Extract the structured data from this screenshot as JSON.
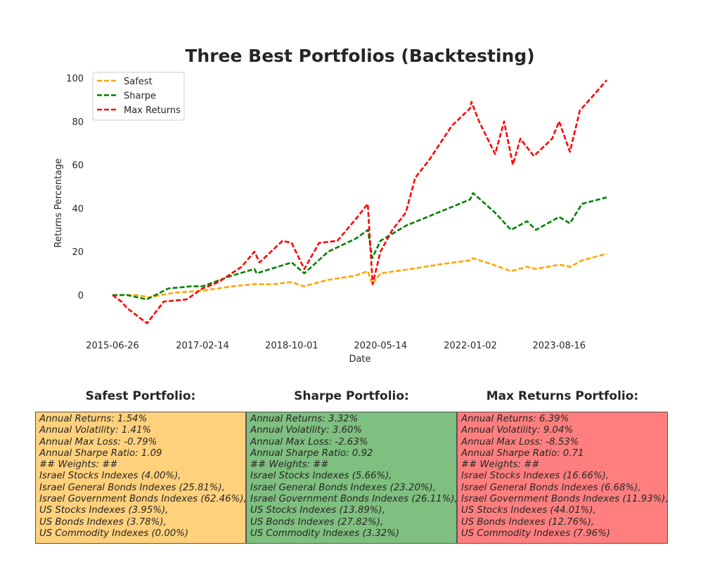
{
  "chart_data": {
    "type": "line",
    "title": "Three Best Portfolios (Backtesting)",
    "xlabel": "Date",
    "ylabel": "Returns Percentage",
    "x_ticks": [
      "2015-06-26",
      "2017-02-14",
      "2018-10-01",
      "2020-05-14",
      "2022-01-02",
      "2023-08-16"
    ],
    "x_range": [
      "2015-06-26",
      "2024-06-30"
    ],
    "y_ticks": [
      0,
      20,
      40,
      60,
      80,
      100
    ],
    "ylim": [
      -19,
      105
    ],
    "grid": false,
    "legend_position": "upper-left",
    "line_style": "dashed",
    "series": [
      {
        "name": "Safest",
        "color": "#FFA500",
        "points": [
          [
            "2015-06-26",
            0
          ],
          [
            "2015-12-01",
            0
          ],
          [
            "2016-03-01",
            -1
          ],
          [
            "2016-08-01",
            1
          ],
          [
            "2017-02-14",
            2
          ],
          [
            "2017-09-01",
            4
          ],
          [
            "2018-01-15",
            5
          ],
          [
            "2018-06-01",
            5
          ],
          [
            "2018-10-01",
            6
          ],
          [
            "2018-12-20",
            4
          ],
          [
            "2019-06-01",
            7
          ],
          [
            "2019-12-01",
            9
          ],
          [
            "2020-02-20",
            11
          ],
          [
            "2020-03-20",
            5
          ],
          [
            "2020-05-14",
            10
          ],
          [
            "2020-12-01",
            12
          ],
          [
            "2021-06-01",
            14
          ],
          [
            "2021-12-31",
            16
          ],
          [
            "2022-01-20",
            17
          ],
          [
            "2022-06-01",
            14
          ],
          [
            "2022-09-30",
            11
          ],
          [
            "2023-01-15",
            13
          ],
          [
            "2023-03-15",
            12
          ],
          [
            "2023-08-16",
            14
          ],
          [
            "2023-10-30",
            13
          ],
          [
            "2024-01-15",
            16
          ],
          [
            "2024-06-28",
            19
          ]
        ]
      },
      {
        "name": "Sharpe",
        "color": "#008000",
        "points": [
          [
            "2015-06-26",
            0
          ],
          [
            "2015-10-01",
            0
          ],
          [
            "2016-02-10",
            -2
          ],
          [
            "2016-07-01",
            3
          ],
          [
            "2016-12-01",
            4
          ],
          [
            "2017-02-14",
            4
          ],
          [
            "2017-09-01",
            9
          ],
          [
            "2018-01-26",
            12
          ],
          [
            "2018-02-10",
            10
          ],
          [
            "2018-10-01",
            15
          ],
          [
            "2018-12-24",
            10
          ],
          [
            "2019-06-01",
            20
          ],
          [
            "2019-12-01",
            26
          ],
          [
            "2020-02-20",
            30
          ],
          [
            "2020-03-20",
            17
          ],
          [
            "2020-05-14",
            25
          ],
          [
            "2020-11-01",
            32
          ],
          [
            "2021-06-01",
            38
          ],
          [
            "2021-12-31",
            44
          ],
          [
            "2022-01-20",
            47
          ],
          [
            "2022-06-15",
            38
          ],
          [
            "2022-09-30",
            30
          ],
          [
            "2023-01-15",
            34
          ],
          [
            "2023-03-15",
            30
          ],
          [
            "2023-08-16",
            36
          ],
          [
            "2023-10-27",
            33
          ],
          [
            "2024-01-15",
            42
          ],
          [
            "2024-06-28",
            45
          ]
        ]
      },
      {
        "name": "Max Returns",
        "color": "#FF0000",
        "points": [
          [
            "2015-06-26",
            0
          ],
          [
            "2015-08-24",
            -3
          ],
          [
            "2015-10-01",
            -6
          ],
          [
            "2016-02-11",
            -13
          ],
          [
            "2016-06-01",
            -3
          ],
          [
            "2016-11-01",
            -2
          ],
          [
            "2017-02-14",
            3
          ],
          [
            "2017-06-01",
            6
          ],
          [
            "2017-11-01",
            13
          ],
          [
            "2018-01-26",
            20
          ],
          [
            "2018-03-01",
            15
          ],
          [
            "2018-08-01",
            25
          ],
          [
            "2018-10-01",
            24
          ],
          [
            "2018-12-24",
            12
          ],
          [
            "2019-04-01",
            24
          ],
          [
            "2019-08-01",
            25
          ],
          [
            "2019-12-01",
            35
          ],
          [
            "2020-02-19",
            42
          ],
          [
            "2020-03-23",
            5
          ],
          [
            "2020-05-14",
            20
          ],
          [
            "2020-08-01",
            30
          ],
          [
            "2020-10-30",
            38
          ],
          [
            "2020-12-31",
            54
          ],
          [
            "2021-04-01",
            62
          ],
          [
            "2021-09-01",
            78
          ],
          [
            "2021-12-31",
            86
          ],
          [
            "2022-01-10",
            89
          ],
          [
            "2022-03-01",
            80
          ],
          [
            "2022-06-16",
            65
          ],
          [
            "2022-08-15",
            80
          ],
          [
            "2022-10-12",
            60
          ],
          [
            "2022-12-01",
            72
          ],
          [
            "2023-03-01",
            64
          ],
          [
            "2023-06-30",
            72
          ],
          [
            "2023-08-16",
            80
          ],
          [
            "2023-10-27",
            66
          ],
          [
            "2024-01-01",
            85
          ],
          [
            "2024-04-01",
            92
          ],
          [
            "2024-06-28",
            99
          ]
        ]
      }
    ]
  },
  "summary": {
    "panels": [
      {
        "title": "Safest Portfolio:",
        "bg_color": "#FFD17C",
        "lines": [
          "Annual Returns: 1.54%",
          "Annual Volatility: 1.41%",
          "Annual Max Loss: -0.79%",
          "Annual Sharpe Ratio: 1.09",
          "## Weights: ##",
          "Israel Stocks Indexes (4.00%),",
          "Israel General Bonds Indexes (25.81%),",
          "Israel Government Bonds Indexes (62.46%),",
          "US Stocks Indexes (3.95%),",
          "US Bonds Indexes (3.78%),",
          "US Commodity Indexes (0.00%)"
        ]
      },
      {
        "title": "Sharpe Portfolio:",
        "bg_color": "#7FBF7F",
        "lines": [
          "Annual Returns: 3.32%",
          "Annual Volatility: 3.60%",
          "Annual Max Loss: -2.63%",
          "Annual Sharpe Ratio: 0.92",
          "## Weights: ##",
          "Israel Stocks Indexes (5.66%),",
          "Israel General Bonds Indexes (23.20%),",
          "Israel Government Bonds Indexes (26.11%),",
          "US Stocks Indexes (13.89%),",
          "US Bonds Indexes (27.82%),",
          "US Commodity Indexes (3.32%)"
        ]
      },
      {
        "title": "Max Returns Portfolio:",
        "bg_color": "#FF7F7F",
        "lines": [
          "Annual Returns: 6.39%",
          "Annual Volatility: 9.04%",
          "Annual Max Loss: -8.53%",
          "Annual Sharpe Ratio: 0.71",
          "## Weights: ##",
          "Israel Stocks Indexes (16.66%),",
          "Israel General Bonds Indexes (6.68%),",
          "Israel Government Bonds Indexes (11.93%),",
          "US Stocks Indexes (44.01%),",
          "US Bonds Indexes (12.76%),",
          "US Commodity Indexes (7.96%)"
        ]
      }
    ]
  }
}
